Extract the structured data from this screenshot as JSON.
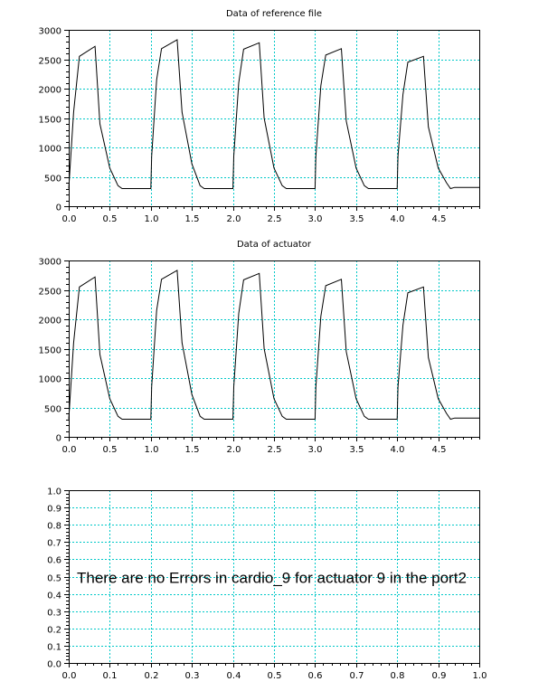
{
  "chart_data": [
    {
      "type": "line",
      "title": "Data of reference file",
      "xlim": [
        0,
        5
      ],
      "ylim": [
        0,
        3000
      ],
      "xticks": [
        "0.0",
        "0.5",
        "1.0",
        "1.5",
        "2.0",
        "2.5",
        "3.0",
        "3.5",
        "4.0",
        "4.5"
      ],
      "yticks": [
        "0",
        "500",
        "1000",
        "1500",
        "2000",
        "2500",
        "3000"
      ],
      "grid": true,
      "series": [
        {
          "x": [
            0.0,
            0.06,
            0.13,
            0.32,
            0.38,
            0.5,
            0.6,
            0.65,
            0.7,
            0.8,
            1.0,
            1.01,
            1.07,
            1.13,
            1.32,
            1.38,
            1.5,
            1.6,
            1.65,
            1.7,
            1.8,
            2.0,
            2.01,
            2.07,
            2.13,
            2.32,
            2.38,
            2.5,
            2.6,
            2.65,
            2.7,
            2.8,
            3.0,
            3.01,
            3.07,
            3.13,
            3.32,
            3.38,
            3.5,
            3.6,
            3.65,
            3.7,
            3.8,
            4.0,
            4.01,
            4.07,
            4.13,
            4.32,
            4.38,
            4.5,
            4.6,
            4.65,
            4.7,
            4.8,
            5.0
          ],
          "y": [
            300,
            1600,
            2550,
            2720,
            1400,
            650,
            350,
            300,
            300,
            300,
            300,
            850,
            2150,
            2680,
            2830,
            1600,
            720,
            350,
            300,
            300,
            300,
            300,
            850,
            2100,
            2670,
            2780,
            1500,
            650,
            350,
            300,
            300,
            300,
            300,
            850,
            2050,
            2570,
            2680,
            1450,
            650,
            350,
            300,
            300,
            300,
            300,
            850,
            1900,
            2450,
            2550,
            1350,
            650,
            400,
            300,
            320,
            320,
            320
          ]
        }
      ]
    },
    {
      "type": "line",
      "title": "Data of actuator",
      "xlim": [
        0,
        5
      ],
      "ylim": [
        0,
        3000
      ],
      "xticks": [
        "0.0",
        "0.5",
        "1.0",
        "1.5",
        "2.0",
        "2.5",
        "3.0",
        "3.5",
        "4.0",
        "4.5"
      ],
      "yticks": [
        "0",
        "500",
        "1000",
        "1500",
        "2000",
        "2500",
        "3000"
      ],
      "grid": true,
      "series": [
        {
          "x": [
            0.0,
            0.06,
            0.13,
            0.32,
            0.38,
            0.5,
            0.6,
            0.65,
            0.7,
            0.8,
            1.0,
            1.01,
            1.07,
            1.13,
            1.32,
            1.38,
            1.5,
            1.6,
            1.65,
            1.7,
            1.8,
            2.0,
            2.01,
            2.07,
            2.13,
            2.32,
            2.38,
            2.5,
            2.6,
            2.65,
            2.7,
            2.8,
            3.0,
            3.01,
            3.07,
            3.13,
            3.32,
            3.38,
            3.5,
            3.6,
            3.65,
            3.7,
            3.8,
            4.0,
            4.01,
            4.07,
            4.13,
            4.32,
            4.38,
            4.5,
            4.6,
            4.65,
            4.7,
            4.8,
            5.0
          ],
          "y": [
            300,
            1600,
            2550,
            2720,
            1400,
            650,
            350,
            300,
            300,
            300,
            300,
            850,
            2150,
            2680,
            2830,
            1600,
            720,
            350,
            300,
            300,
            300,
            300,
            850,
            2100,
            2670,
            2780,
            1500,
            650,
            350,
            300,
            300,
            300,
            300,
            850,
            2050,
            2570,
            2680,
            1450,
            650,
            350,
            300,
            300,
            300,
            300,
            850,
            1900,
            2450,
            2550,
            1350,
            650,
            400,
            300,
            320,
            320,
            320
          ]
        }
      ]
    },
    {
      "type": "line",
      "title": "",
      "xlim": [
        0,
        1
      ],
      "ylim": [
        0,
        1
      ],
      "xticks": [
        "0.0",
        "0.1",
        "0.2",
        "0.3",
        "0.4",
        "0.5",
        "0.6",
        "0.7",
        "0.8",
        "0.9",
        "1.0"
      ],
      "yticks": [
        "0.0",
        "0.1",
        "0.2",
        "0.3",
        "0.4",
        "0.5",
        "0.6",
        "0.7",
        "0.8",
        "0.9",
        "1.0"
      ],
      "grid": true,
      "annotation": "There are no Errors in cardio_9 for actuator 9 in the port2",
      "series": []
    }
  ],
  "colors": {
    "grid": "#00c8c8",
    "line": "#000000",
    "axis": "#000000"
  }
}
